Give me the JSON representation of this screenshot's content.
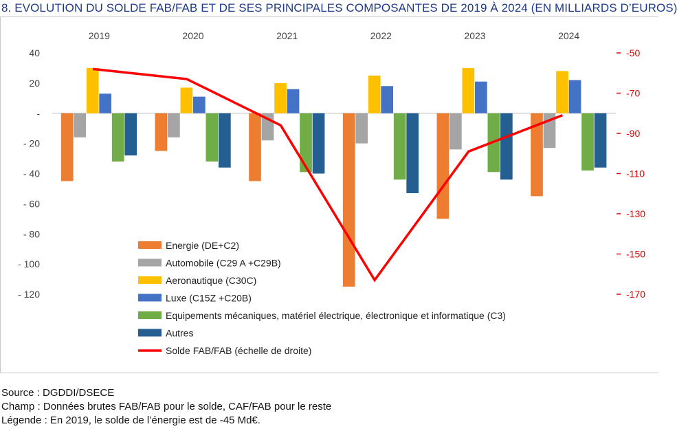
{
  "title": "8. EVOLUTION DU SOLDE FAB/FAB ET DE SES PRINCIPALES COMPOSANTES DE 2019 À 2024 (EN MILLIARDS D’EUROS)",
  "chart_data": {
    "type": "bar",
    "title": "8. EVOLUTION DU SOLDE FAB/FAB ET DE SES PRINCIPALES COMPOSANTES DE 2019 À 2024 (EN MILLIARDS D’EUROS)",
    "categories": [
      "2019",
      "2020",
      "2021",
      "2022",
      "2023",
      "2024"
    ],
    "y_left": {
      "ticks": [
        40,
        20,
        0,
        -20,
        -40,
        -60,
        -80,
        -100,
        -120
      ],
      "tick_labels": [
        "40",
        "20",
        "-",
        "- 20",
        "- 40",
        "- 60",
        "- 80",
        "- 100",
        "- 120"
      ],
      "range": [
        -120,
        40
      ]
    },
    "y_right": {
      "ticks": [
        -50,
        -70,
        -90,
        -110,
        -130,
        -150,
        -170
      ],
      "tick_labels": [
        "-50",
        "-70",
        "-90",
        "-110",
        "-130",
        "-150",
        "-170"
      ],
      "range": [
        -170,
        -50
      ],
      "color": "#e00000"
    },
    "series": [
      {
        "name": "Energie (DE+C2)",
        "color": "#ed7d31",
        "values": [
          -45,
          -25,
          -45,
          -115,
          -70,
          -55
        ]
      },
      {
        "name": "Automobile (C29 A +C29B)",
        "color": "#a5a5a5",
        "values": [
          -16,
          -16,
          -18,
          -20,
          -24,
          -23
        ]
      },
      {
        "name": "Aeronautique (C30C)",
        "color": "#ffc000",
        "values": [
          30,
          17,
          20,
          25,
          30,
          28
        ]
      },
      {
        "name": "Luxe (C15Z +C20B)",
        "color": "#4472c4",
        "values": [
          13,
          11,
          16,
          18,
          21,
          22
        ]
      },
      {
        "name": "Equipements mécaniques, matériel électrique, électronique et informatique (C3)",
        "color": "#70ad47",
        "values": [
          -32,
          -32,
          -39,
          -44,
          -39,
          -38
        ]
      },
      {
        "name": "Autres",
        "color": "#255e91",
        "values": [
          -28,
          -36,
          -40,
          -53,
          -44,
          -36
        ]
      }
    ],
    "line": {
      "name": "Solde FAB/FAB (échelle de droite)",
      "color": "#ff0000",
      "axis": "right",
      "values": [
        -58,
        -63,
        -86,
        -163,
        -99,
        -81
      ]
    },
    "legend_position": "bottom-left inside plot"
  },
  "notes": {
    "source": "Source : DGDDI/DSECE",
    "scope": "Champ : Données brutes FAB/FAB pour le solde, CAF/FAB pour le reste",
    "legend": "Légende : En 2019, le solde de l’énergie est de -45 Md€."
  }
}
